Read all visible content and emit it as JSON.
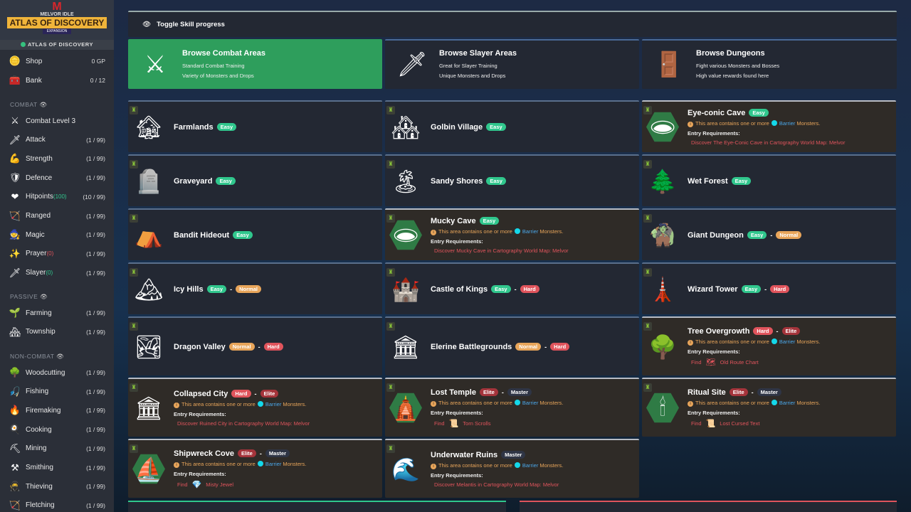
{
  "logo": {
    "top": "MELVOR IDLE",
    "title": "ATLAS OF DISCOVERY",
    "sub": "EXPANSION"
  },
  "expansion_label": "ATLAS OF DISCOVERY",
  "sidebar": {
    "top": [
      {
        "icon": "coin-icon",
        "glyph": "🪙",
        "label": "Shop",
        "value": "0 GP"
      },
      {
        "icon": "chest-icon",
        "glyph": "🧰",
        "label": "Bank",
        "value": "0 / 12"
      }
    ],
    "sections": [
      {
        "title": "COMBAT",
        "items": [
          {
            "icon": "crossed-swords-icon",
            "glyph": "⚔",
            "label": "Combat Level 3",
            "value": ""
          },
          {
            "icon": "sword-icon",
            "glyph": "🗡",
            "label": "Attack",
            "value": "(1 / 99)"
          },
          {
            "icon": "strength-icon",
            "glyph": "💪",
            "label": "Strength",
            "value": "(1 / 99)"
          },
          {
            "icon": "shield-icon",
            "glyph": "🛡",
            "label": "Defence",
            "value": "(1 / 99)"
          },
          {
            "icon": "heart-icon",
            "glyph": "❤",
            "label": "Hitpoints",
            "sub": "(100)",
            "value": "(10 / 99)"
          },
          {
            "icon": "bow-icon",
            "glyph": "🏹",
            "label": "Ranged",
            "value": "(1 / 99)"
          },
          {
            "icon": "wizard-hat-icon",
            "glyph": "🧙",
            "label": "Magic",
            "value": "(1 / 99)"
          },
          {
            "icon": "prayer-icon",
            "glyph": "✨",
            "label": "Prayer",
            "sub": "(0)",
            "subred": true,
            "value": "(1 / 99)"
          },
          {
            "icon": "slayer-icon",
            "glyph": "🗡",
            "label": "Slayer",
            "sub": "(0)",
            "value": "(1 / 99)"
          }
        ]
      },
      {
        "title": "PASSIVE",
        "items": [
          {
            "icon": "farming-icon",
            "glyph": "🌱",
            "label": "Farming",
            "value": "(1 / 99)"
          },
          {
            "icon": "township-icon",
            "glyph": "🏘",
            "label": "Township",
            "value": "(1 / 99)"
          }
        ]
      },
      {
        "title": "NON-COMBAT",
        "items": [
          {
            "icon": "tree-icon",
            "glyph": "🌳",
            "label": "Woodcutting",
            "value": "(1 / 99)"
          },
          {
            "icon": "fishing-icon",
            "glyph": "🎣",
            "label": "Fishing",
            "value": "(1 / 99)"
          },
          {
            "icon": "fire-icon",
            "glyph": "🔥",
            "label": "Firemaking",
            "value": "(1 / 99)"
          },
          {
            "icon": "chef-hat-icon",
            "glyph": "🍳",
            "label": "Cooking",
            "value": "(1 / 99)"
          },
          {
            "icon": "pickaxe-icon",
            "glyph": "⛏",
            "label": "Mining",
            "value": "(1 / 99)"
          },
          {
            "icon": "anvil-icon",
            "glyph": "⚒",
            "label": "Smithing",
            "value": "(1 / 99)"
          },
          {
            "icon": "thief-icon",
            "glyph": "🥷",
            "label": "Thieving",
            "value": "(1 / 99)"
          },
          {
            "icon": "fletching-icon",
            "glyph": "🏹",
            "label": "Fletching",
            "value": "(1 / 99)"
          }
        ]
      }
    ]
  },
  "toggle_label": "Toggle Skill progress",
  "browse": [
    {
      "icon": "crossed-swords-icon",
      "glyph": "⚔",
      "title": "Browse Combat Areas",
      "lines": [
        "Standard Combat Training",
        "Variety of Monsters and Drops"
      ],
      "active": true
    },
    {
      "icon": "slayer-icon",
      "glyph": "🗡",
      "title": "Browse Slayer Areas",
      "lines": [
        "Great for Slayer Training",
        "Unique Monsters and Drops"
      ]
    },
    {
      "icon": "dungeon-door-icon",
      "glyph": "🚪",
      "title": "Browse Dungeons",
      "lines": [
        "Fight various Monsters and Bosses",
        "High value rewards found here"
      ]
    }
  ],
  "barrier_text": {
    "pre": "This area contains one or more",
    "barrier": "Barrier",
    "post": "Monsters."
  },
  "entry_label": "Entry Requirements:",
  "find_label": "Find",
  "areas": [
    {
      "name": "Farmlands",
      "icon": "barn-icon",
      "glyph": "🏚",
      "badges": [
        "Easy"
      ]
    },
    {
      "name": "Golbin Village",
      "icon": "village-icon",
      "glyph": "🏘",
      "badges": [
        "Easy"
      ]
    },
    {
      "name": "Eye-conic Cave",
      "icon": "cave-icon",
      "glyph": "🕳",
      "hex": true,
      "badges": [
        "Easy"
      ],
      "barrier": true,
      "req": "Discover The Eye-Conic Cave in Cartography World Map: Melvor"
    },
    {
      "name": "Graveyard",
      "icon": "gravestone-icon",
      "glyph": "🪦",
      "badges": [
        "Easy"
      ]
    },
    {
      "name": "Sandy Shores",
      "icon": "palm-tree-icon",
      "glyph": "🏝",
      "badges": [
        "Easy"
      ]
    },
    {
      "name": "Wet Forest",
      "icon": "forest-icon",
      "glyph": "🌲",
      "badges": [
        "Easy"
      ]
    },
    {
      "name": "Bandit Hideout",
      "icon": "tent-icon",
      "glyph": "⛺",
      "badges": [
        "Easy"
      ]
    },
    {
      "name": "Mucky Cave",
      "icon": "cave-icon",
      "glyph": "🕳",
      "hex": true,
      "badges": [
        "Easy"
      ],
      "barrier": true,
      "req": "Discover Mucky Cave in Cartography World Map: Melvor"
    },
    {
      "name": "Giant Dungeon",
      "icon": "giant-icon",
      "glyph": "🧌",
      "badges": [
        "Easy",
        "Normal"
      ]
    },
    {
      "name": "Icy Hills",
      "icon": "mountain-icon",
      "glyph": "🏔",
      "badges": [
        "Easy",
        "Normal"
      ]
    },
    {
      "name": "Castle of Kings",
      "icon": "castle-icon",
      "glyph": "🏰",
      "badges": [
        "Easy",
        "Hard"
      ]
    },
    {
      "name": "Wizard Tower",
      "icon": "tower-icon",
      "glyph": "🗼",
      "badges": [
        "Easy",
        "Hard"
      ]
    },
    {
      "name": "Dragon Valley",
      "icon": "valley-icon",
      "glyph": "🏞",
      "badges": [
        "Normal",
        "Hard"
      ]
    },
    {
      "name": "Elerine Battlegrounds",
      "icon": "colosseum-icon",
      "glyph": "🏛",
      "badges": [
        "Normal",
        "Hard"
      ]
    },
    {
      "name": "Tree Overgrowth",
      "icon": "twisted-tree-icon",
      "glyph": "🌳",
      "badges": [
        "Hard",
        "Elite"
      ],
      "barrier": true,
      "find": {
        "item": "Old Route Chart",
        "icon": "map-icon",
        "glyph": "🗺"
      }
    },
    {
      "name": "Collapsed City",
      "icon": "ruins-icon",
      "glyph": "🏛",
      "badges": [
        "Hard",
        "Elite"
      ],
      "barrier": true,
      "req": "Discover Ruined City in Cartography World Map: Melvor"
    },
    {
      "name": "Lost Temple",
      "icon": "temple-icon",
      "glyph": "🛕",
      "hex": true,
      "badges": [
        "Elite",
        "Master"
      ],
      "barrier": true,
      "find": {
        "item": "Torn Scrolls",
        "icon": "scroll-icon",
        "glyph": "📜"
      }
    },
    {
      "name": "Ritual Site",
      "icon": "ritual-site-icon",
      "glyph": "🕯",
      "hex": true,
      "badges": [
        "Elite",
        "Master"
      ],
      "barrier": true,
      "find": {
        "item": "Lost Cursed Text",
        "icon": "scroll-icon",
        "glyph": "📜"
      }
    },
    {
      "name": "Shipwreck Cove",
      "icon": "shipwreck-icon",
      "glyph": "⛵",
      "hex": true,
      "badges": [
        "Elite",
        "Master"
      ],
      "barrier": true,
      "find": {
        "item": "Misty Jewel",
        "icon": "jewel-icon",
        "glyph": "💎"
      }
    },
    {
      "name": "Underwater Ruins",
      "icon": "underwater-ruins-icon",
      "glyph": "🌊",
      "badges": [
        "Master"
      ],
      "barrier": true,
      "req": "Discover Melantis in Cartography World Map: Melvor"
    }
  ]
}
